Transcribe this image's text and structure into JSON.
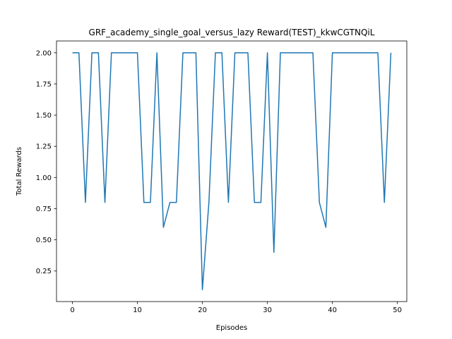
{
  "chart_data": {
    "type": "line",
    "title": "GRF_academy_single_goal_versus_lazy Reward(TEST)_kkwCGTNQiL",
    "xlabel": "Episodes",
    "ylabel": "Total Rewards",
    "xlim": [
      -2.45,
      51.45
    ],
    "ylim": [
      0.005,
      2.095
    ],
    "xticks": [
      0,
      10,
      20,
      30,
      40,
      50
    ],
    "xtick_labels": [
      "0",
      "10",
      "20",
      "30",
      "40",
      "50"
    ],
    "yticks": [
      0.25,
      0.5,
      0.75,
      1.0,
      1.25,
      1.5,
      1.75,
      2.0
    ],
    "ytick_labels": [
      "0.25",
      "0.50",
      "0.75",
      "1.00",
      "1.25",
      "1.50",
      "1.75",
      "2.00"
    ],
    "grid": false,
    "series": [
      {
        "color": "#1f77b4",
        "x": [
          0,
          1,
          2,
          3,
          4,
          5,
          6,
          7,
          8,
          9,
          10,
          11,
          12,
          13,
          14,
          15,
          16,
          17,
          18,
          19,
          20,
          21,
          22,
          23,
          24,
          25,
          26,
          27,
          28,
          29,
          30,
          31,
          32,
          33,
          34,
          35,
          36,
          37,
          38,
          39,
          40,
          41,
          42,
          43,
          44,
          45,
          46,
          47,
          48,
          49
        ],
        "values": [
          2.0,
          2.0,
          0.8,
          2.0,
          2.0,
          0.8,
          2.0,
          2.0,
          2.0,
          2.0,
          2.0,
          0.8,
          0.8,
          2.0,
          0.6,
          0.8,
          0.8,
          2.0,
          2.0,
          2.0,
          0.1,
          0.8,
          2.0,
          2.0,
          0.8,
          2.0,
          2.0,
          2.0,
          0.8,
          0.8,
          2.0,
          0.4,
          2.0,
          2.0,
          2.0,
          2.0,
          2.0,
          2.0,
          0.8,
          0.6,
          2.0,
          2.0,
          2.0,
          2.0,
          2.0,
          2.0,
          2.0,
          2.0,
          0.8,
          2.0
        ]
      }
    ]
  }
}
